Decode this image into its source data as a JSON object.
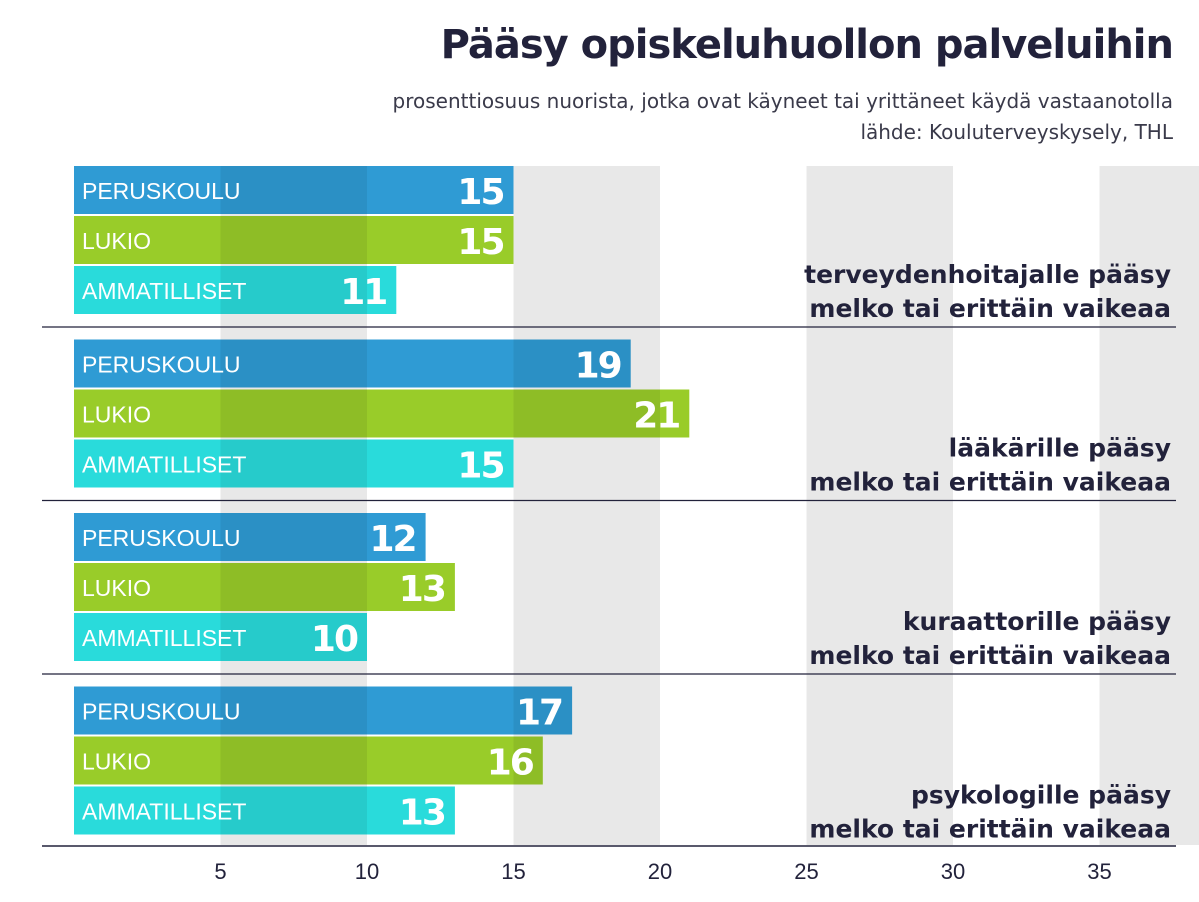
{
  "header": {
    "title": "Pääsy opiskeluhuollon palveluihin",
    "subtitle": "prosenttiosuus nuorista, jotka ovat käyneet tai yrittäneet käydä vastaanotolla",
    "source": "lähde: Kouluterveyskysely, THL"
  },
  "colors": {
    "PERUSKOULU": "#2f9bd4",
    "LUKIO": "#99cc29",
    "AMMATILLISET": "#29dbdb",
    "band": "#e8e8e8",
    "text": "#22223b"
  },
  "chart_data": {
    "type": "bar",
    "orientation": "horizontal",
    "title": "Pääsy opiskeluhuollon palveluihin",
    "subtitle": "prosenttiosuus nuorista, jotka ovat käyneet tai yrittäneet käydä vastaanotolla",
    "source": "lähde: Kouluterveyskysely, THL",
    "xlim": [
      0,
      37
    ],
    "xticks": [
      5,
      10,
      15,
      20,
      25,
      30,
      35
    ],
    "grid": "alternating vertical bands",
    "series_names": [
      "PERUSKOULU",
      "LUKIO",
      "AMMATILLISET"
    ],
    "groups": [
      {
        "label_line1": "terveydenhoitajalle pääsy",
        "label_line2": "melko tai erittäin vaikeaa",
        "values": [
          15,
          15,
          11
        ]
      },
      {
        "label_line1": "lääkärille pääsy",
        "label_line2": "melko tai erittäin vaikeaa",
        "values": [
          19,
          21,
          15
        ]
      },
      {
        "label_line1": "kuraattorille pääsy",
        "label_line2": "melko tai erittäin vaikeaa",
        "values": [
          12,
          13,
          10
        ]
      },
      {
        "label_line1": "psykologille pääsy",
        "label_line2": "melko tai erittäin vaikeaa",
        "values": [
          17,
          16,
          13
        ]
      }
    ]
  }
}
